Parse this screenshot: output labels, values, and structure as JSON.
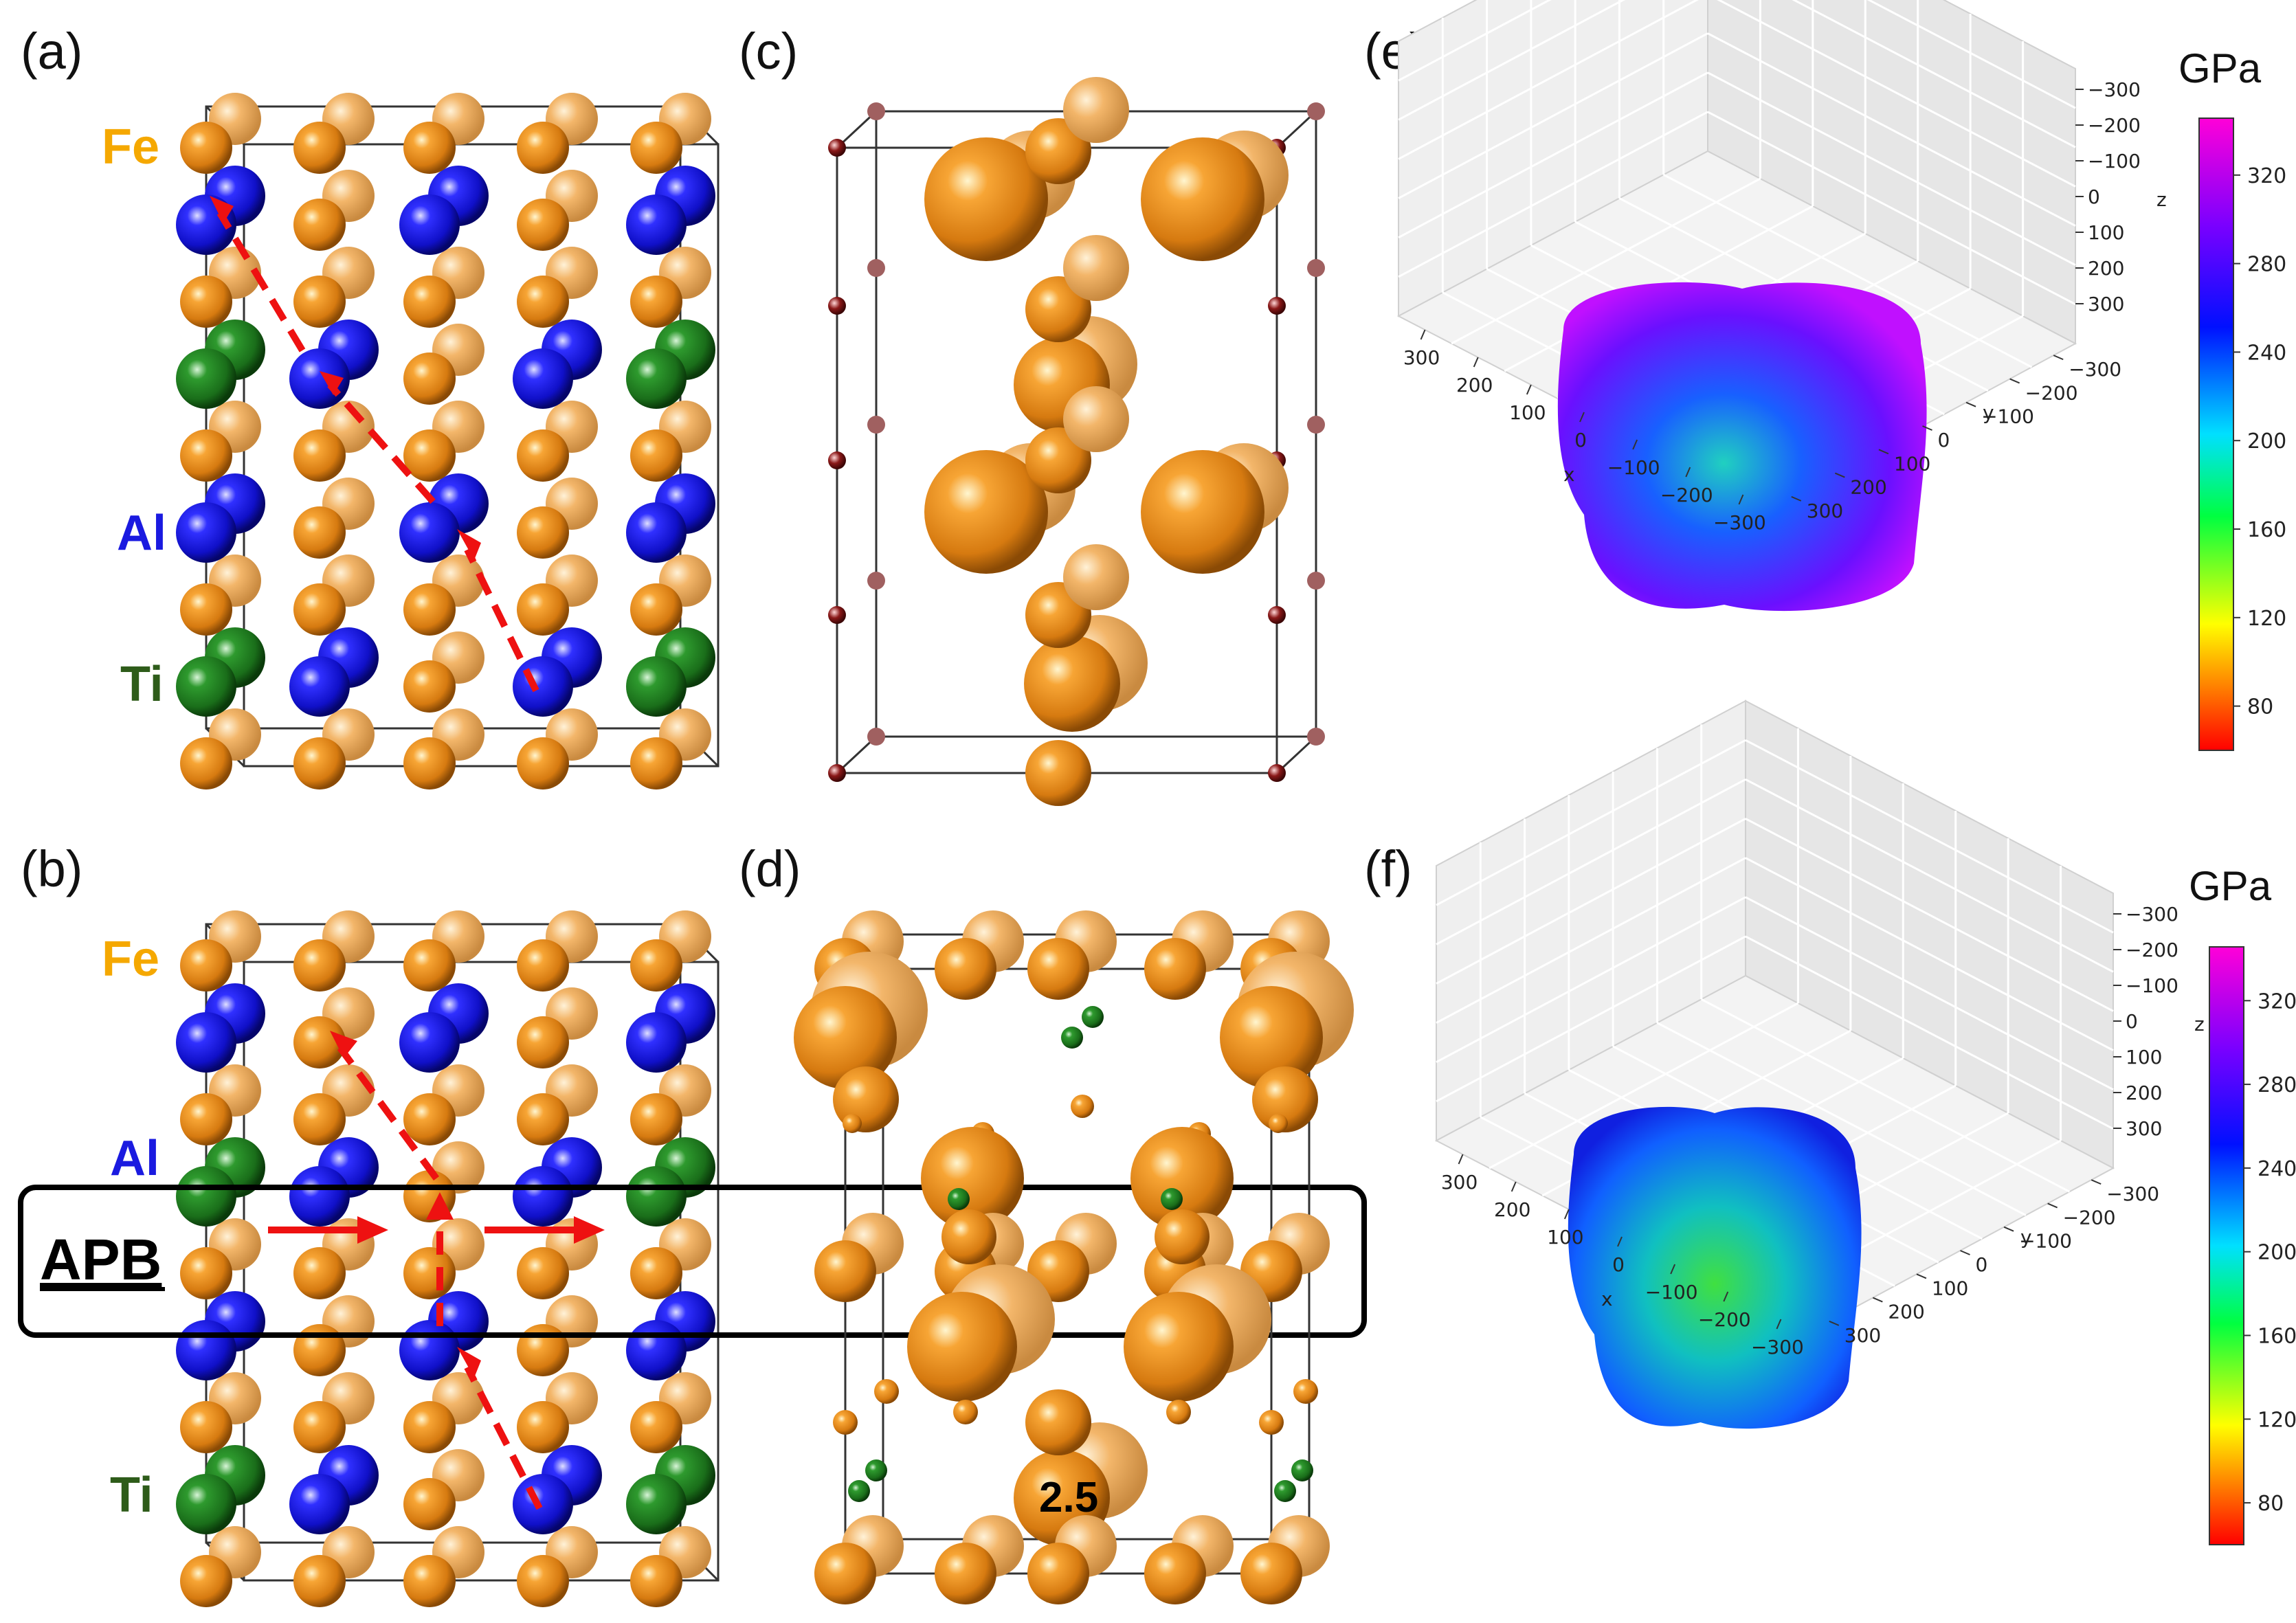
{
  "panels": {
    "a": {
      "label": "(a)",
      "elements": [
        "Fe",
        "Al",
        "Ti"
      ]
    },
    "b": {
      "label": "(b)",
      "elements": [
        "Fe",
        "Al",
        "Ti"
      ],
      "boundary_label": "APB"
    },
    "c": {
      "label": "(c)"
    },
    "d": {
      "label": "(d)",
      "annotation": "2.5"
    },
    "e": {
      "label": "(e)"
    },
    "f": {
      "label": "(f)"
    }
  },
  "axes3d": {
    "z_ticks": [
      "−300",
      "−200",
      "−100",
      "0",
      "100",
      "200",
      "300"
    ],
    "x_ticks": [
      "300",
      "200",
      "100",
      "0",
      "−100",
      "−200",
      "−300"
    ],
    "y_ticks": [
      "−300",
      "−200",
      "−100",
      "0",
      "100",
      "200",
      "300"
    ],
    "x_label": "x",
    "y_label": "y",
    "z_label": "z"
  },
  "colorbar": {
    "title": "GPa",
    "ticks": [
      "320",
      "280",
      "240",
      "200",
      "160",
      "120",
      "80"
    ],
    "colors": [
      "#ff00d8",
      "#7a00ff",
      "#0010ff",
      "#00e0ff",
      "#00ff40",
      "#ffff00",
      "#ff0000"
    ]
  },
  "colors": {
    "fe": "#e8891a",
    "al": "#1414d6",
    "ti": "#1e7d1e",
    "fe_label": "#f5a800",
    "al_label": "#1a1ae0",
    "ti_label": "#2e5c1a",
    "arrow": "#ee1111"
  }
}
